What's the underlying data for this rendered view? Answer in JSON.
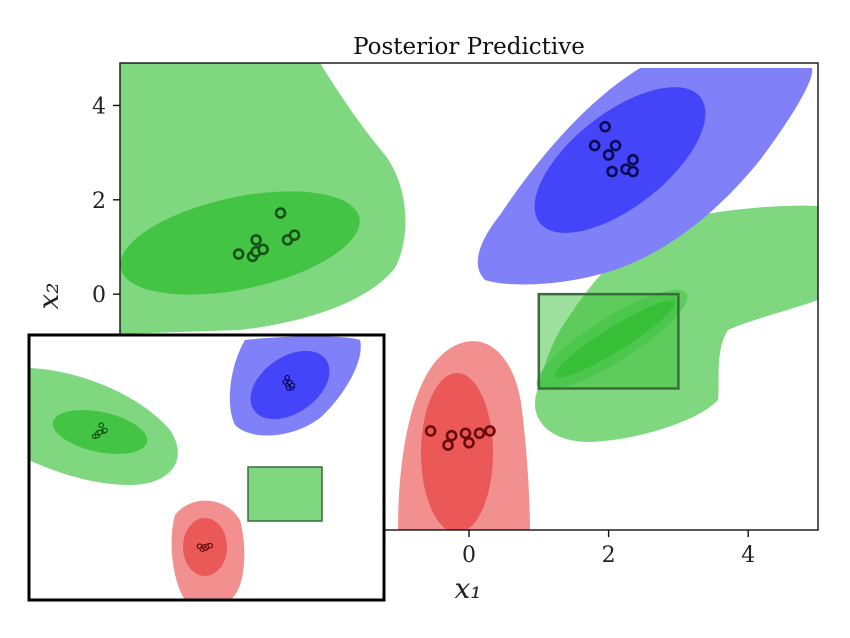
{
  "chart_data": [
    {
      "type": "scatter",
      "title": "Posterior Predictive",
      "xlabel": "𝑥₁",
      "ylabel": "𝑥₂",
      "xlim": [
        -5.0,
        5.0
      ],
      "ylim": [
        -5.0,
        4.9
      ],
      "xticks": [
        0,
        2,
        4
      ],
      "yticks": [
        0,
        2,
        4
      ],
      "grid": false,
      "colors": {
        "green_outer": "#7fd87f",
        "green_inner": "#44c444",
        "blue_outer": "#8080f8",
        "blue_inner": "#4444f8",
        "red_outer": "#f29090",
        "red_inner": "#ea5858",
        "region_fill": "#3cbf3c",
        "region_edge": "#3d6b3d"
      },
      "highlight_region": {
        "x": [
          1.0,
          3.0
        ],
        "y": [
          -2.0,
          0.0
        ]
      },
      "series": [
        {
          "cluster": "green",
          "points": [
            [
              -3.3,
              0.85
            ],
            [
              -3.1,
              0.8
            ],
            [
              -3.05,
              0.9
            ],
            [
              -3.05,
              1.15
            ],
            [
              -2.95,
              0.95
            ],
            [
              -2.7,
              1.72
            ],
            [
              -2.6,
              1.15
            ],
            [
              -2.5,
              1.25
            ]
          ]
        },
        {
          "cluster": "blue",
          "points": [
            [
              1.8,
              3.15
            ],
            [
              1.95,
              3.55
            ],
            [
              2.0,
              2.95
            ],
            [
              2.05,
              2.6
            ],
            [
              2.1,
              3.15
            ],
            [
              2.25,
              2.65
            ],
            [
              2.35,
              2.6
            ],
            [
              2.35,
              2.85
            ]
          ]
        },
        {
          "cluster": "red",
          "points": [
            [
              -0.55,
              -2.9
            ],
            [
              -0.3,
              -3.2
            ],
            [
              -0.25,
              -3.0
            ],
            [
              -0.05,
              -2.95
            ],
            [
              0.0,
              -3.15
            ],
            [
              0.15,
              -2.95
            ],
            [
              0.3,
              -2.9
            ]
          ]
        }
      ]
    },
    {
      "type": "scatter",
      "title": "",
      "xlabel": "",
      "ylabel": "",
      "xlim": [
        -5.0,
        5.0
      ],
      "ylim": [
        -5.0,
        4.9
      ],
      "highlight_region": {
        "x": [
          1.0,
          3.0
        ],
        "y": [
          -2.0,
          0.0
        ]
      },
      "series": [
        {
          "cluster": "green",
          "points": [
            [
              -3.3,
              0.85
            ],
            [
              -3.1,
              0.9
            ],
            [
              -3.05,
              1.1
            ],
            [
              -2.9,
              1.15
            ],
            [
              -2.8,
              1.7
            ],
            [
              -2.6,
              1.25
            ],
            [
              -2.5,
              1.3
            ]
          ]
        },
        {
          "cluster": "blue",
          "points": [
            [
              1.8,
              3.2
            ],
            [
              1.95,
              3.6
            ],
            [
              2.0,
              2.95
            ],
            [
              2.05,
              2.65
            ],
            [
              2.15,
              3.15
            ],
            [
              2.3,
              2.7
            ],
            [
              2.35,
              2.9
            ]
          ]
        },
        {
          "cluster": "red",
          "points": [
            [
              -0.55,
              -2.95
            ],
            [
              -0.3,
              -3.2
            ],
            [
              -0.15,
              -3.0
            ],
            [
              0.0,
              -3.1
            ],
            [
              0.15,
              -2.95
            ],
            [
              0.35,
              -2.9
            ]
          ]
        }
      ]
    }
  ]
}
